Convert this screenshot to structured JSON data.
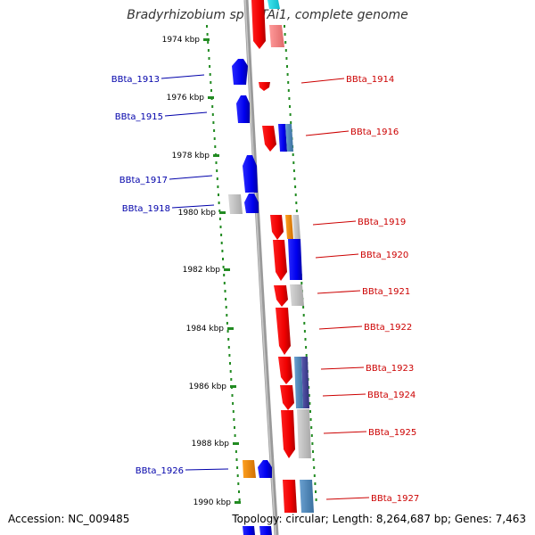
{
  "title": "Bradyrhizobium sp. BTAi1, complete genome",
  "accession": "Accession: NC_009485",
  "topology": "Topology: circular; Length: 8,264,687 bp; Genes: 7,463",
  "ticks": [
    {
      "label": "1974 kbp"
    },
    {
      "label": "1976 kbp"
    },
    {
      "label": "1978 kbp"
    },
    {
      "label": "1980 kbp"
    },
    {
      "label": "1982 kbp"
    },
    {
      "label": "1984 kbp"
    },
    {
      "label": "1986 kbp"
    },
    {
      "label": "1988 kbp"
    },
    {
      "label": "1990 kbp"
    }
  ],
  "genes_left": [
    {
      "label": "BBta_1913"
    },
    {
      "label": "BBta_1915"
    },
    {
      "label": "BBta_1917"
    },
    {
      "label": "BBta_1918"
    },
    {
      "label": "BBta_1926"
    }
  ],
  "genes_right": [
    {
      "label": "BBta_1914"
    },
    {
      "label": "BBta_1916"
    },
    {
      "label": "BBta_1919"
    },
    {
      "label": "BBta_1920"
    },
    {
      "label": "BBta_1921"
    },
    {
      "label": "BBta_1922"
    },
    {
      "label": "BBta_1923"
    },
    {
      "label": "BBta_1924"
    },
    {
      "label": "BBta_1925"
    },
    {
      "label": "BBta_1927"
    }
  ],
  "colors": {
    "left_label": "#0000aa",
    "right_label": "#cc0000",
    "tick": "#228b22",
    "backbone": "#888888",
    "gene_red": "#ff0000",
    "gene_blue": "#0000ff",
    "gene_gray": "#c0c0c0",
    "gene_orange": "#ff8c00",
    "gene_steel": "#4682b4"
  }
}
